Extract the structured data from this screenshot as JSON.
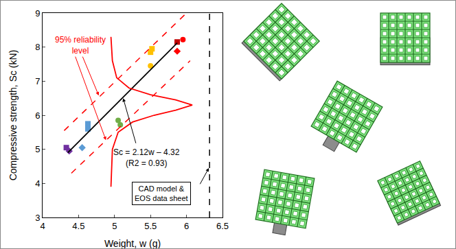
{
  "chart_data": {
    "type": "scatter",
    "xlabel": "Weight, w (g)",
    "ylabel": "Compressive strength, Sc (kN)",
    "xlim": [
      4,
      6.5
    ],
    "ylim": [
      3,
      9
    ],
    "xticks": [
      4,
      4.5,
      5,
      5.5,
      6,
      6.5
    ],
    "yticks": [
      3,
      4,
      5,
      6,
      7,
      8,
      9
    ],
    "grid": false,
    "series": [
      {
        "type": "scatter",
        "color": "#7030a0",
        "marker": "square",
        "x": [
          4.33
        ],
        "values": [
          5.05
        ]
      },
      {
        "type": "scatter",
        "color": "#7030a0",
        "marker": "diamond",
        "x": [
          4.37
        ],
        "values": [
          4.95
        ]
      },
      {
        "type": "scatter",
        "color": "#5b9bd5",
        "marker": "square",
        "x": [
          4.63,
          4.63
        ],
        "values": [
          5.75,
          5.6
        ]
      },
      {
        "type": "scatter",
        "color": "#5b9bd5",
        "marker": "diamond",
        "x": [
          4.55
        ],
        "values": [
          5.05
        ]
      },
      {
        "type": "scatter",
        "color": "#70ad47",
        "marker": "circle",
        "x": [
          5.05,
          5.08
        ],
        "values": [
          5.85,
          5.72
        ]
      },
      {
        "type": "scatter",
        "color": "#ffc000",
        "marker": "square",
        "x": [
          5.52,
          5.5
        ],
        "values": [
          7.95,
          7.85
        ]
      },
      {
        "type": "scatter",
        "color": "#ffc000",
        "marker": "circle",
        "x": [
          5.5
        ],
        "values": [
          7.45
        ]
      },
      {
        "type": "scatter",
        "color": "#c00000",
        "marker": "square",
        "x": [
          5.87
        ],
        "values": [
          8.15
        ]
      },
      {
        "type": "scatter",
        "color": "#ff0000",
        "marker": "circle",
        "x": [
          5.95
        ],
        "values": [
          8.22
        ]
      },
      {
        "type": "scatter",
        "color": "#ff0000",
        "marker": "diamond",
        "x": [
          5.87
        ],
        "values": [
          7.88
        ]
      },
      {
        "type": "line",
        "color": "#000000",
        "line_style": "solid",
        "x": [
          4.35,
          5.87
        ],
        "values": [
          4.9,
          8.12
        ]
      },
      {
        "type": "line",
        "color": "#ff0000",
        "line_style": "dashed",
        "x": [
          4.3,
          6.0
        ],
        "values": [
          5.55,
          9.0
        ]
      },
      {
        "type": "line",
        "color": "#ff0000",
        "line_style": "dashed",
        "x": [
          4.4,
          6.05
        ],
        "values": [
          4.3,
          7.6
        ]
      },
      {
        "type": "line",
        "color": "#ff0000",
        "line_style": "solid",
        "x": [
          4.95,
          4.97,
          5.05,
          5.25,
          5.55,
          5.85,
          6.08,
          5.85,
          5.5,
          5.2,
          5.03,
          4.97,
          4.95
        ],
        "values": [
          3.9,
          5.0,
          5.5,
          5.8,
          6.0,
          6.15,
          6.3,
          6.45,
          6.6,
          6.8,
          7.1,
          7.6,
          8.3
        ]
      },
      {
        "type": "line",
        "color": "#000000",
        "line_style": "dashed",
        "x": [
          6.32,
          6.32
        ],
        "values": [
          3,
          9
        ]
      }
    ],
    "annotations": [
      {
        "lines": [
          "95% reliability",
          "level"
        ],
        "color": "#ff0000"
      },
      {
        "lines": [
          "Sc = 2.12w – 4.32",
          "(R2 = 0.93)"
        ],
        "color": "#000000"
      },
      {
        "lines": [
          "CAD model &",
          "EOS data sheet"
        ],
        "color": "#000000"
      }
    ]
  }
}
